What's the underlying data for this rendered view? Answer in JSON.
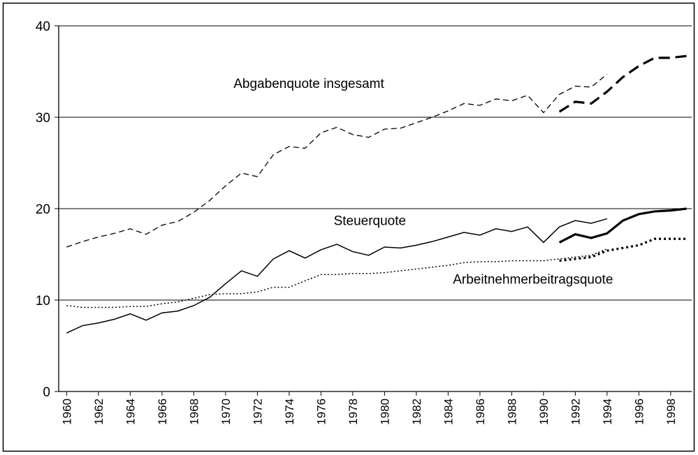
{
  "chart_data": {
    "type": "line",
    "annotations": [
      {
        "text": "Abgabenquote insgesamt",
        "x": 1970.5,
        "y": 33.2
      },
      {
        "text": "Steuerquote",
        "x": 1976.8,
        "y": 18.2
      },
      {
        "text": "Arbeitnehmerbeitragsquote",
        "x": 1984.3,
        "y": 11.8
      }
    ],
    "series": [
      {
        "style": "dashed",
        "width": 1.3,
        "color": "#000",
        "x": [
          1960,
          1961,
          1962,
          1963,
          1964,
          1965,
          1966,
          1967,
          1968,
          1969,
          1970,
          1971,
          1972,
          1973,
          1974,
          1975,
          1976,
          1977,
          1978,
          1979,
          1980,
          1981,
          1982,
          1983,
          1984,
          1985,
          1986,
          1987,
          1988,
          1989,
          1990,
          1991,
          1992,
          1993,
          1994
        ],
        "values": [
          15.8,
          16.4,
          16.9,
          17.3,
          17.8,
          17.2,
          18.2,
          18.6,
          19.6,
          20.9,
          22.5,
          23.9,
          23.5,
          25.9,
          26.8,
          26.6,
          28.3,
          28.9,
          28.1,
          27.8,
          28.7,
          28.8,
          29.4,
          30.0,
          30.7,
          31.5,
          31.3,
          32.0,
          31.8,
          32.4,
          30.5,
          32.5,
          33.4,
          33.3,
          34.7
        ]
      },
      {
        "style": "dashed",
        "width": 3.2,
        "color": "#000",
        "x": [
          1991,
          1992,
          1993,
          1994,
          1995,
          1996,
          1997,
          1998,
          1999
        ],
        "values": [
          30.6,
          31.7,
          31.5,
          32.8,
          34.4,
          35.6,
          36.5,
          36.5,
          36.7
        ]
      },
      {
        "style": "solid",
        "width": 1.5,
        "color": "#000",
        "x": [
          1960,
          1961,
          1962,
          1963,
          1964,
          1965,
          1966,
          1967,
          1968,
          1969,
          1970,
          1971,
          1972,
          1973,
          1974,
          1975,
          1976,
          1977,
          1978,
          1979,
          1980,
          1981,
          1982,
          1983,
          1984,
          1985,
          1986,
          1987,
          1988,
          1989,
          1990,
          1991,
          1992,
          1993,
          1994
        ],
        "values": [
          6.4,
          7.2,
          7.5,
          7.9,
          8.5,
          7.8,
          8.6,
          8.8,
          9.4,
          10.3,
          11.8,
          13.2,
          12.6,
          14.5,
          15.4,
          14.6,
          15.5,
          16.1,
          15.3,
          14.9,
          15.8,
          15.7,
          16.0,
          16.4,
          16.9,
          17.4,
          17.1,
          17.8,
          17.5,
          18.0,
          16.3,
          18.0,
          18.7,
          18.4,
          18.9
        ]
      },
      {
        "style": "solid",
        "width": 3.2,
        "color": "#000",
        "x": [
          1991,
          1992,
          1993,
          1994,
          1995,
          1996,
          1997,
          1998,
          1999
        ],
        "values": [
          16.3,
          17.2,
          16.8,
          17.3,
          18.7,
          19.4,
          19.7,
          19.8,
          20.0
        ]
      },
      {
        "style": "dotted",
        "width": 1.5,
        "color": "#000",
        "x": [
          1960,
          1961,
          1962,
          1963,
          1964,
          1965,
          1966,
          1967,
          1968,
          1969,
          1970,
          1971,
          1972,
          1973,
          1974,
          1975,
          1976,
          1977,
          1978,
          1979,
          1980,
          1981,
          1982,
          1983,
          1984,
          1985,
          1986,
          1987,
          1988,
          1989,
          1990,
          1991,
          1992,
          1993,
          1994
        ],
        "values": [
          9.4,
          9.2,
          9.2,
          9.2,
          9.3,
          9.3,
          9.6,
          9.8,
          10.2,
          10.6,
          10.7,
          10.7,
          10.9,
          11.4,
          11.4,
          12.1,
          12.8,
          12.8,
          12.9,
          12.9,
          13.0,
          13.2,
          13.4,
          13.6,
          13.8,
          14.1,
          14.2,
          14.2,
          14.3,
          14.3,
          14.3,
          14.5,
          14.7,
          14.9,
          15.6
        ]
      },
      {
        "style": "dotted",
        "width": 3.2,
        "color": "#000",
        "x": [
          1991,
          1992,
          1993,
          1994,
          1995,
          1996,
          1997,
          1998,
          1999
        ],
        "values": [
          14.3,
          14.5,
          14.7,
          15.4,
          15.7,
          16.0,
          16.7,
          16.7,
          16.7
        ]
      }
    ],
    "xlim": [
      1959.5,
      1999.5
    ],
    "xticks": [
      1960,
      1962,
      1964,
      1966,
      1968,
      1970,
      1972,
      1974,
      1976,
      1978,
      1980,
      1982,
      1984,
      1986,
      1988,
      1990,
      1992,
      1994,
      1996,
      1998
    ],
    "ylim": [
      0,
      40
    ],
    "yticks": [
      0,
      10,
      20,
      30,
      40
    ],
    "grid": true
  }
}
